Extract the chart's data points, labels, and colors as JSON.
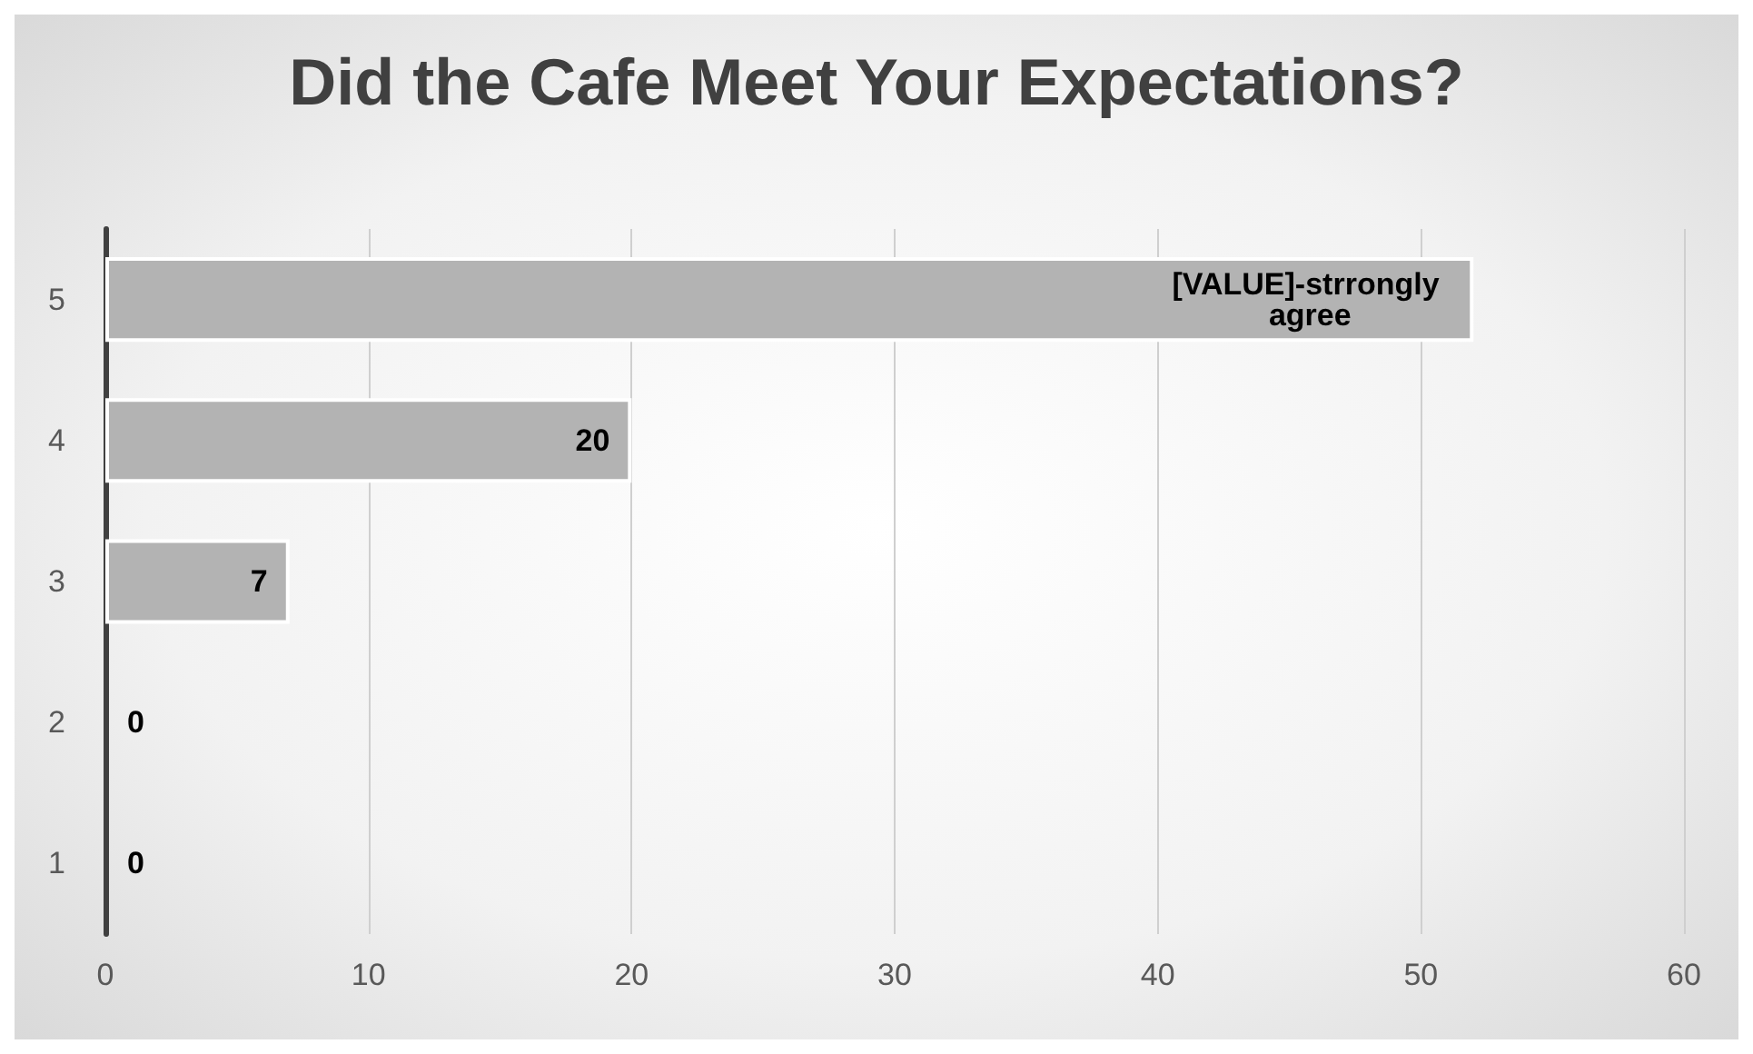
{
  "chart_data": {
    "type": "bar",
    "orientation": "horizontal",
    "title": "Did the Cafe Meet Your Expectations?",
    "categories": [
      "5",
      "4",
      "3",
      "2",
      "1"
    ],
    "values": [
      52,
      20,
      7,
      0,
      0
    ],
    "value_labels": [
      "[VALUE]-strrongly agree",
      "20",
      "7",
      "0",
      "0"
    ],
    "color": "#b3b3b3",
    "xlim": [
      0,
      60
    ],
    "xticks": [
      0,
      10,
      20,
      30,
      40,
      50,
      60
    ],
    "grid": "x"
  }
}
